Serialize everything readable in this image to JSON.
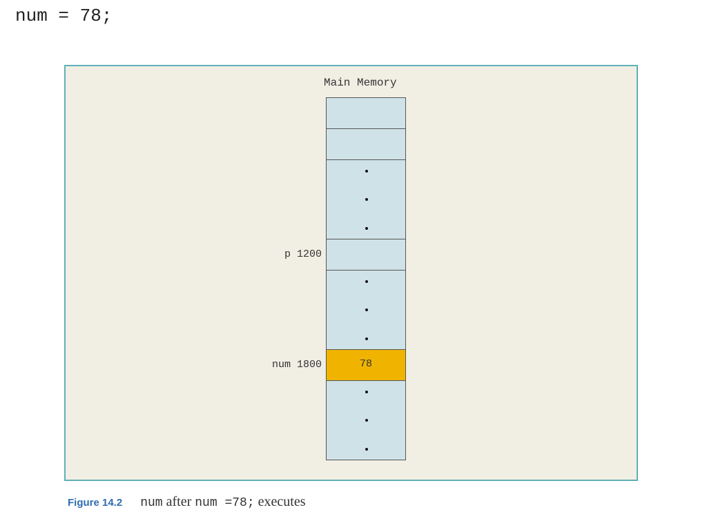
{
  "code_line": "num = 78;",
  "diagram": {
    "title": "Main Memory",
    "cells": [
      {
        "label": "",
        "value": "",
        "dots": false,
        "highlight": false
      },
      {
        "label": "",
        "value": "",
        "dots": false,
        "highlight": false
      },
      {
        "label": "",
        "value": "",
        "dots": true,
        "highlight": false
      },
      {
        "label": "p 1200",
        "value": "",
        "dots": false,
        "highlight": false
      },
      {
        "label": "",
        "value": "",
        "dots": true,
        "highlight": false
      },
      {
        "label": "num 1800",
        "value": "78",
        "dots": false,
        "highlight": true
      },
      {
        "label": "",
        "value": "",
        "dots": true,
        "highlight": false
      }
    ],
    "colors": {
      "cell": "#cfe2e8",
      "highlight": "#f0b400",
      "frame": "#5fb0b8",
      "background": "#f1eee4"
    }
  },
  "caption": {
    "figure": "Figure 14.2",
    "part1": "num",
    "part2": " after ",
    "part3": "num =78;",
    "part4": " executes"
  }
}
